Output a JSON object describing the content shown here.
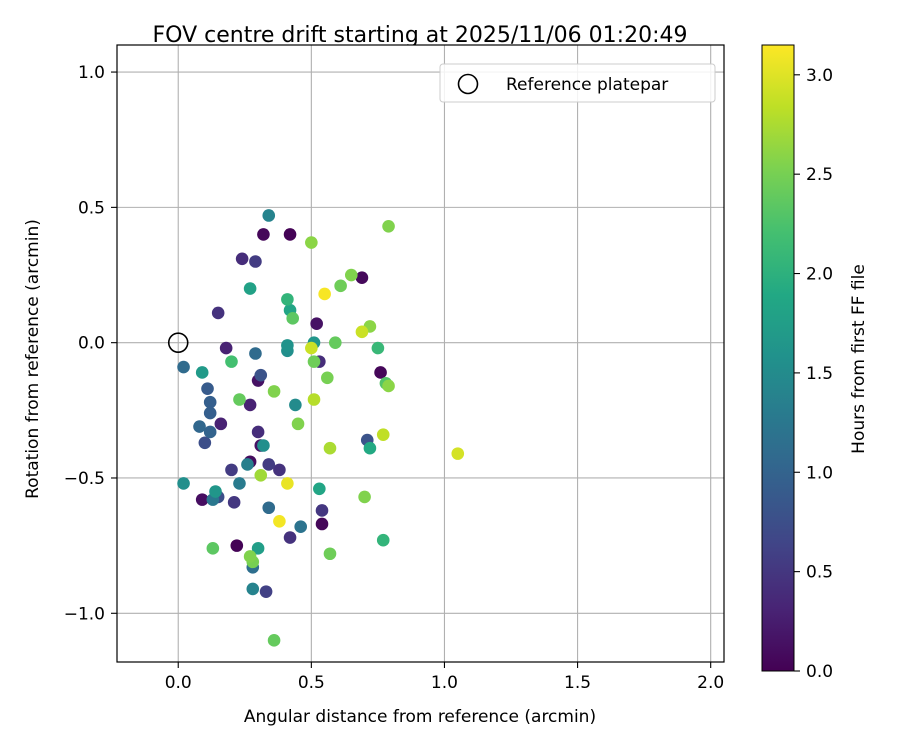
{
  "chart_data": {
    "type": "scatter",
    "title": "FOV centre drift starting at 2025/11/06 01:20:49",
    "xlabel": "Angular distance from reference (arcmin)",
    "ylabel": "Rotation from reference (arcmin)",
    "xlim": [
      -0.23,
      2.05
    ],
    "ylim": [
      -1.18,
      1.1
    ],
    "xticks": [
      0.0,
      0.5,
      1.0,
      1.5,
      2.0
    ],
    "xtick_labels": [
      "0.0",
      "0.5",
      "1.0",
      "1.5",
      "2.0"
    ],
    "yticks": [
      -1.0,
      -0.5,
      0.0,
      0.5,
      1.0
    ],
    "ytick_labels": [
      "−1.0",
      "−0.5",
      "0.0",
      "0.5",
      "1.0"
    ],
    "grid": true,
    "legend": {
      "position": "top-right",
      "entries": [
        "Reference platepar"
      ]
    },
    "reference_point": {
      "label": "Reference platepar",
      "x": 0.0,
      "y": 0.0
    },
    "colorbar": {
      "label": "Hours from first FF file",
      "range": [
        0.0,
        3.15
      ],
      "ticks": [
        0.0,
        0.5,
        1.0,
        1.5,
        2.0,
        2.5,
        3.0
      ],
      "tick_labels": [
        "0.0",
        "0.5",
        "1.0",
        "1.5",
        "2.0",
        "2.5",
        "3.0"
      ],
      "colormap": "viridis"
    },
    "points": [
      {
        "x": 0.42,
        "y": 0.4,
        "t": 0.02
      },
      {
        "x": 0.32,
        "y": 0.4,
        "t": 0.05
      },
      {
        "x": 0.69,
        "y": 0.24,
        "t": 0.07
      },
      {
        "x": 0.76,
        "y": -0.11,
        "t": 0.05
      },
      {
        "x": 0.54,
        "y": -0.67,
        "t": 0.05
      },
      {
        "x": 0.22,
        "y": -0.75,
        "t": 0.02
      },
      {
        "x": 0.09,
        "y": -0.58,
        "t": 0.12
      },
      {
        "x": 0.27,
        "y": -0.44,
        "t": 0.1
      },
      {
        "x": 0.3,
        "y": -0.14,
        "t": 0.15
      },
      {
        "x": 0.52,
        "y": 0.07,
        "t": 0.15
      },
      {
        "x": 0.31,
        "y": -0.38,
        "t": 0.15
      },
      {
        "x": 0.27,
        "y": -0.23,
        "t": 0.3
      },
      {
        "x": 0.18,
        "y": -0.02,
        "t": 0.3
      },
      {
        "x": 0.16,
        "y": -0.3,
        "t": 0.3
      },
      {
        "x": 0.3,
        "y": -0.33,
        "t": 0.4
      },
      {
        "x": 0.53,
        "y": -0.07,
        "t": 0.4
      },
      {
        "x": 0.38,
        "y": -0.47,
        "t": 0.45
      },
      {
        "x": 0.42,
        "y": -0.72,
        "t": 0.45
      },
      {
        "x": 0.54,
        "y": -0.62,
        "t": 0.5
      },
      {
        "x": 0.34,
        "y": -0.45,
        "t": 0.55
      },
      {
        "x": 0.24,
        "y": 0.31,
        "t": 0.4
      },
      {
        "x": 0.29,
        "y": 0.3,
        "t": 0.55
      },
      {
        "x": 0.15,
        "y": 0.11,
        "t": 0.45
      },
      {
        "x": 0.2,
        "y": -0.47,
        "t": 0.55
      },
      {
        "x": 0.21,
        "y": -0.59,
        "t": 0.5
      },
      {
        "x": 0.33,
        "y": -0.92,
        "t": 0.6
      },
      {
        "x": 0.1,
        "y": -0.37,
        "t": 0.75
      },
      {
        "x": 0.15,
        "y": -0.57,
        "t": 0.75
      },
      {
        "x": 0.71,
        "y": -0.36,
        "t": 0.8
      },
      {
        "x": 0.31,
        "y": -0.12,
        "t": 0.8
      },
      {
        "x": 0.11,
        "y": -0.17,
        "t": 0.9
      },
      {
        "x": 0.12,
        "y": -0.22,
        "t": 0.95
      },
      {
        "x": 0.12,
        "y": -0.26,
        "t": 0.95
      },
      {
        "x": 0.12,
        "y": -0.33,
        "t": 1.0
      },
      {
        "x": 0.08,
        "y": -0.31,
        "t": 1.05
      },
      {
        "x": 0.02,
        "y": -0.09,
        "t": 1.1
      },
      {
        "x": 0.29,
        "y": -0.04,
        "t": 1.1
      },
      {
        "x": 0.46,
        "y": -0.68,
        "t": 1.2
      },
      {
        "x": 0.34,
        "y": -0.61,
        "t": 1.1
      },
      {
        "x": 0.13,
        "y": -0.58,
        "t": 1.25
      },
      {
        "x": 0.23,
        "y": -0.52,
        "t": 1.3
      },
      {
        "x": 0.28,
        "y": -0.83,
        "t": 1.15
      },
      {
        "x": 0.28,
        "y": -0.91,
        "t": 1.4
      },
      {
        "x": 0.34,
        "y": 0.47,
        "t": 1.4
      },
      {
        "x": 0.26,
        "y": -0.45,
        "t": 1.35
      },
      {
        "x": 0.32,
        "y": -0.38,
        "t": 1.55
      },
      {
        "x": 0.14,
        "y": -0.55,
        "t": 1.65
      },
      {
        "x": 0.02,
        "y": -0.52,
        "t": 1.55
      },
      {
        "x": 0.44,
        "y": -0.23,
        "t": 1.5
      },
      {
        "x": 0.41,
        "y": -0.03,
        "t": 1.55
      },
      {
        "x": 0.41,
        "y": -0.01,
        "t": 1.6
      },
      {
        "x": 0.51,
        "y": 0.0,
        "t": 1.65
      },
      {
        "x": 0.09,
        "y": -0.11,
        "t": 1.7
      },
      {
        "x": 0.3,
        "y": -0.76,
        "t": 1.75
      },
      {
        "x": 0.27,
        "y": 0.2,
        "t": 1.8
      },
      {
        "x": 0.72,
        "y": -0.39,
        "t": 1.9
      },
      {
        "x": 0.53,
        "y": -0.54,
        "t": 1.85
      },
      {
        "x": 0.42,
        "y": 0.12,
        "t": 1.85
      },
      {
        "x": 0.41,
        "y": 0.16,
        "t": 2.05
      },
      {
        "x": 0.77,
        "y": -0.73,
        "t": 2.05
      },
      {
        "x": 0.75,
        "y": -0.02,
        "t": 2.1
      },
      {
        "x": 0.2,
        "y": -0.07,
        "t": 2.2
      },
      {
        "x": 0.78,
        "y": -0.15,
        "t": 2.3
      },
      {
        "x": 0.43,
        "y": 0.09,
        "t": 2.35
      },
      {
        "x": 0.59,
        "y": 0.0,
        "t": 2.4
      },
      {
        "x": 0.13,
        "y": -0.76,
        "t": 2.35
      },
      {
        "x": 0.23,
        "y": -0.21,
        "t": 2.4
      },
      {
        "x": 0.61,
        "y": 0.21,
        "t": 2.45
      },
      {
        "x": 0.51,
        "y": -0.07,
        "t": 2.45
      },
      {
        "x": 0.56,
        "y": -0.13,
        "t": 2.5
      },
      {
        "x": 0.65,
        "y": 0.25,
        "t": 2.55
      },
      {
        "x": 0.45,
        "y": -0.3,
        "t": 2.55
      },
      {
        "x": 0.57,
        "y": -0.78,
        "t": 2.45
      },
      {
        "x": 0.36,
        "y": -1.1,
        "t": 2.4
      },
      {
        "x": 0.28,
        "y": -0.81,
        "t": 2.5
      },
      {
        "x": 0.27,
        "y": -0.79,
        "t": 2.55
      },
      {
        "x": 0.7,
        "y": -0.57,
        "t": 2.55
      },
      {
        "x": 0.36,
        "y": -0.18,
        "t": 2.55
      },
      {
        "x": 0.79,
        "y": 0.43,
        "t": 2.55
      },
      {
        "x": 0.79,
        "y": -0.16,
        "t": 2.6
      },
      {
        "x": 0.5,
        "y": 0.37,
        "t": 2.6
      },
      {
        "x": 0.72,
        "y": 0.06,
        "t": 2.6
      },
      {
        "x": 0.31,
        "y": -0.49,
        "t": 2.7
      },
      {
        "x": 0.57,
        "y": -0.39,
        "t": 2.75
      },
      {
        "x": 0.51,
        "y": -0.21,
        "t": 2.8
      },
      {
        "x": 0.69,
        "y": 0.04,
        "t": 2.9
      },
      {
        "x": 0.77,
        "y": -0.34,
        "t": 2.85
      },
      {
        "x": 0.5,
        "y": -0.02,
        "t": 2.9
      },
      {
        "x": 1.05,
        "y": -0.41,
        "t": 2.95
      },
      {
        "x": 0.41,
        "y": -0.52,
        "t": 3.05
      },
      {
        "x": 0.38,
        "y": -0.66,
        "t": 3.1
      },
      {
        "x": 0.55,
        "y": 0.18,
        "t": 3.12
      }
    ]
  }
}
